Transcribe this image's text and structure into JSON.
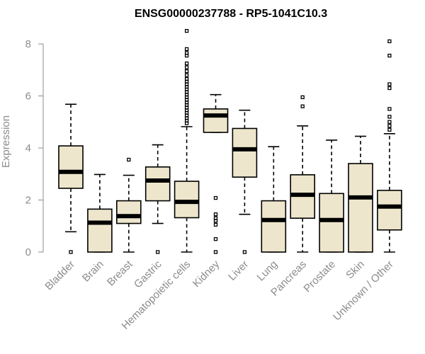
{
  "chart_data": {
    "type": "boxplot",
    "title": "ENSG00000237788 - RP5-1041C10.3",
    "xlabel": "",
    "ylabel": "Expression",
    "ylim": [
      0,
      8.7
    ],
    "yticks": [
      0,
      2,
      4,
      6,
      8
    ],
    "colors": {
      "box_fill": "#ede6cc",
      "stroke": "#000000",
      "axis": "#8c8c8c"
    },
    "categories": [
      "Bladder",
      "Brain",
      "Breast",
      "Gastric",
      "Hematopoietic cells",
      "Kidney",
      "Liver",
      "Lung",
      "Pancreas",
      "Prostate",
      "Skin",
      "Unknown / Other"
    ],
    "boxes": [
      {
        "name": "Bladder",
        "q1": 2.45,
        "median": 3.08,
        "q3": 4.08,
        "whisker_low": 0.78,
        "whisker_high": 5.68,
        "outliers": [
          0.0
        ]
      },
      {
        "name": "Brain",
        "q1": 0.0,
        "median": 1.13,
        "q3": 1.65,
        "whisker_low": 0.0,
        "whisker_high": 2.98,
        "outliers": []
      },
      {
        "name": "Breast",
        "q1": 1.1,
        "median": 1.38,
        "q3": 1.97,
        "whisker_low": 0.0,
        "whisker_high": 2.95,
        "outliers": [
          3.55
        ]
      },
      {
        "name": "Gastric",
        "q1": 1.97,
        "median": 2.75,
        "q3": 3.27,
        "whisker_low": 1.1,
        "whisker_high": 4.12,
        "outliers": [
          0.0
        ]
      },
      {
        "name": "Hematopoietic cells",
        "q1": 1.32,
        "median": 1.93,
        "q3": 2.72,
        "whisker_low": 0.0,
        "whisker_high": 4.82,
        "outliers": [
          4.95,
          5.05,
          5.15,
          5.25,
          5.35,
          5.45,
          5.55,
          5.65,
          5.75,
          5.85,
          5.95,
          6.05,
          6.15,
          6.25,
          6.35,
          6.45,
          6.55,
          6.65,
          6.8,
          6.95,
          7.1,
          7.25,
          7.55,
          7.65,
          7.8,
          8.5
        ]
      },
      {
        "name": "Kidney",
        "q1": 4.6,
        "median": 5.25,
        "q3": 5.5,
        "whisker_low": 4.6,
        "whisker_high": 6.05,
        "outliers": [
          2.08,
          1.45,
          1.3,
          1.2,
          1.05,
          0.5,
          0.0
        ]
      },
      {
        "name": "Liver",
        "q1": 2.88,
        "median": 3.95,
        "q3": 4.75,
        "whisker_low": 1.45,
        "whisker_high": 5.45,
        "outliers": [
          0.0
        ]
      },
      {
        "name": "Lung",
        "q1": 0.0,
        "median": 1.23,
        "q3": 1.97,
        "whisker_low": 0.0,
        "whisker_high": 4.05,
        "outliers": []
      },
      {
        "name": "Pancreas",
        "q1": 1.3,
        "median": 2.2,
        "q3": 2.97,
        "whisker_low": 0.0,
        "whisker_high": 4.85,
        "outliers": [
          5.6,
          5.95
        ]
      },
      {
        "name": "Prostate",
        "q1": 0.0,
        "median": 1.23,
        "q3": 2.25,
        "whisker_low": 0.0,
        "whisker_high": 4.3,
        "outliers": []
      },
      {
        "name": "Skin",
        "q1": 0.0,
        "median": 2.1,
        "q3": 3.4,
        "whisker_low": 0.0,
        "whisker_high": 4.45,
        "outliers": []
      },
      {
        "name": "Unknown / Other",
        "q1": 0.85,
        "median": 1.75,
        "q3": 2.37,
        "whisker_low": 0.0,
        "whisker_high": 4.55,
        "outliers": [
          4.7,
          4.85,
          5.0,
          5.2,
          5.5,
          6.3,
          6.45,
          7.55,
          8.1
        ]
      }
    ]
  }
}
